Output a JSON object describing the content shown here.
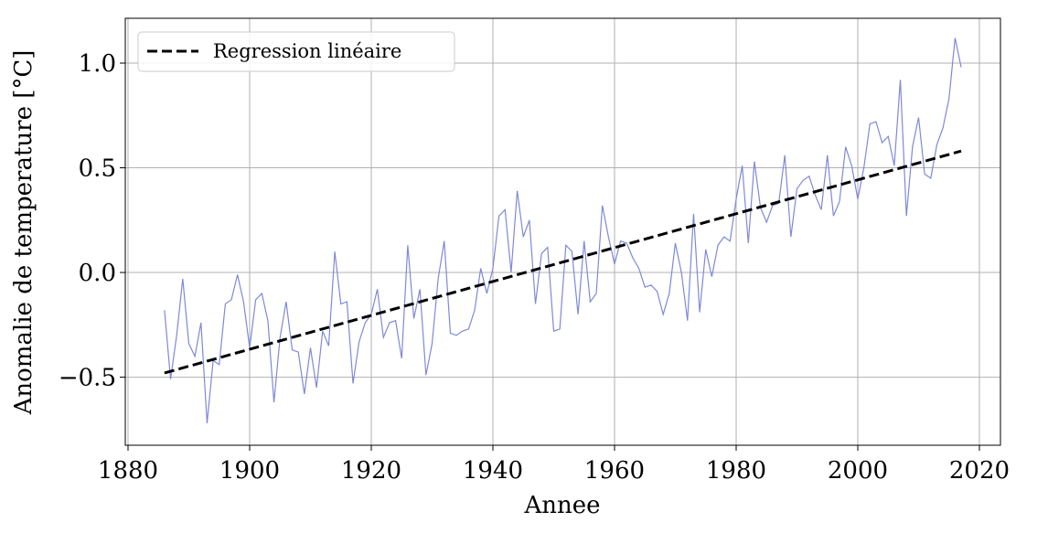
{
  "chart_data": {
    "type": "line",
    "xlabel": "Annee",
    "ylabel": "Anomalie de temperature [°C]",
    "xlim": [
      1879.55,
      2023.46
    ],
    "ylim": [
      -0.825,
      1.214
    ],
    "xticks": [
      1880,
      1900,
      1920,
      1940,
      1960,
      1980,
      2000,
      2020
    ],
    "yticks": [
      {
        "value": -0.5,
        "label": "−0.5"
      },
      {
        "value": 0,
        "label": "0.0"
      },
      0.5,
      {
        "value": 1,
        "label": "1.0"
      }
    ],
    "grid": true,
    "legend": "upper-left",
    "series": [
      {
        "color": "#8088d8",
        "linestyle": "solid",
        "x": [
          1886,
          1887,
          1888,
          1889,
          1890,
          1891,
          1892,
          1893,
          1894,
          1895,
          1896,
          1897,
          1898,
          1899,
          1900,
          1901,
          1902,
          1903,
          1904,
          1905,
          1906,
          1907,
          1908,
          1909,
          1910,
          1911,
          1912,
          1913,
          1914,
          1915,
          1916,
          1917,
          1918,
          1919,
          1920,
          1921,
          1922,
          1923,
          1924,
          1925,
          1926,
          1927,
          1928,
          1929,
          1930,
          1931,
          1932,
          1933,
          1934,
          1935,
          1936,
          1937,
          1938,
          1939,
          1940,
          1941,
          1942,
          1943,
          1944,
          1945,
          1946,
          1947,
          1948,
          1949,
          1950,
          1951,
          1952,
          1953,
          1954,
          1955,
          1956,
          1957,
          1958,
          1959,
          1960,
          1961,
          1962,
          1963,
          1964,
          1965,
          1966,
          1967,
          1968,
          1969,
          1970,
          1971,
          1972,
          1973,
          1974,
          1975,
          1976,
          1977,
          1978,
          1979,
          1980,
          1981,
          1982,
          1983,
          1984,
          1985,
          1986,
          1987,
          1988,
          1989,
          1990,
          1991,
          1992,
          1993,
          1994,
          1995,
          1996,
          1997,
          1998,
          1999,
          2000,
          2001,
          2002,
          2003,
          2004,
          2005,
          2006,
          2007,
          2008,
          2009,
          2010,
          2011,
          2012,
          2013,
          2014,
          2015,
          2016,
          2017
        ],
        "values": [
          -0.18,
          -0.51,
          -0.3,
          -0.03,
          -0.34,
          -0.4,
          -0.24,
          -0.72,
          -0.42,
          -0.44,
          -0.15,
          -0.13,
          -0.01,
          -0.14,
          -0.36,
          -0.13,
          -0.1,
          -0.23,
          -0.62,
          -0.31,
          -0.14,
          -0.37,
          -0.38,
          -0.58,
          -0.36,
          -0.55,
          -0.28,
          -0.35,
          0.1,
          -0.15,
          -0.14,
          -0.53,
          -0.33,
          -0.24,
          -0.2,
          -0.08,
          -0.31,
          -0.24,
          -0.23,
          -0.41,
          0.13,
          -0.22,
          -0.08,
          -0.49,
          -0.34,
          -0.03,
          0.15,
          -0.29,
          -0.3,
          -0.28,
          -0.27,
          -0.18,
          0.02,
          -0.1,
          0.02,
          0.27,
          0.3,
          0.0,
          0.39,
          0.17,
          0.25,
          -0.15,
          0.09,
          0.12,
          -0.28,
          -0.27,
          0.13,
          0.1,
          -0.2,
          0.15,
          -0.14,
          -0.1,
          0.32,
          0.17,
          0.04,
          0.15,
          0.14,
          0.07,
          0.02,
          -0.07,
          -0.06,
          -0.09,
          -0.2,
          -0.1,
          0.14,
          0.0,
          -0.23,
          0.28,
          -0.19,
          0.11,
          -0.02,
          0.13,
          0.17,
          0.15,
          0.35,
          0.51,
          0.14,
          0.53,
          0.31,
          0.24,
          0.32,
          0.33,
          0.56,
          0.17,
          0.4,
          0.44,
          0.46,
          0.37,
          0.3,
          0.56,
          0.27,
          0.34,
          0.6,
          0.51,
          0.35,
          0.5,
          0.71,
          0.72,
          0.62,
          0.65,
          0.51,
          0.92,
          0.27,
          0.6,
          0.74,
          0.47,
          0.45,
          0.61,
          0.69,
          0.83,
          1.12,
          0.98
        ]
      },
      {
        "name": "Regression linéaire",
        "color": "#000000",
        "linestyle": "dashed",
        "x": [
          1886,
          2017
        ],
        "values": [
          -0.48,
          0.58
        ]
      }
    ]
  }
}
